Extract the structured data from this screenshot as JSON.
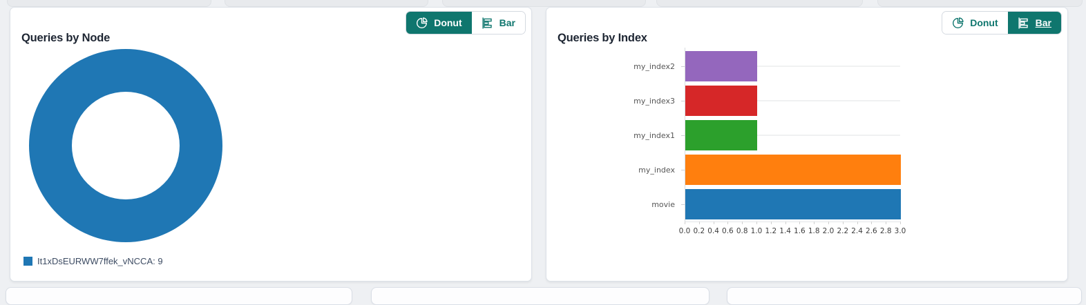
{
  "accent_teal": "#0f766e",
  "panels": {
    "node": {
      "title": "Queries by Node",
      "toggle": {
        "donut_label": "Donut",
        "bar_label": "Bar",
        "active": "Donut"
      },
      "legend": [
        {
          "label": "It1xDsEURWW7ffek_vNCCA: 9",
          "color": "#1f77b4"
        }
      ]
    },
    "index": {
      "title": "Queries by Index",
      "toggle": {
        "donut_label": "Donut",
        "bar_label": "Bar",
        "active": "Bar"
      }
    }
  },
  "chart_data": [
    {
      "type": "pie",
      "title": "Queries by Node",
      "labels": [
        "It1xDsEURWW7ffek_vNCCA"
      ],
      "values": [
        9
      ],
      "colors": [
        "#1f77b4"
      ],
      "donut": true,
      "donut_hole_ratio": 0.55,
      "legend_position": "bottom-left",
      "legend_entries": [
        "It1xDsEURWW7ffek_vNCCA: 9"
      ]
    },
    {
      "type": "bar",
      "orientation": "horizontal",
      "title": "Queries by Index",
      "categories": [
        "my_index2",
        "my_index3",
        "my_index1",
        "my_index",
        "movie"
      ],
      "values": [
        1,
        1,
        1,
        3,
        3
      ],
      "colors": [
        "#9467bd",
        "#d62728",
        "#2ca02c",
        "#ff7f0e",
        "#1f77b4"
      ],
      "xlim": [
        0,
        3
      ],
      "xtick_labels": [
        "0.0",
        "0.2",
        "0.4",
        "0.6",
        "0.8",
        "1.0",
        "1.2",
        "1.4",
        "1.6",
        "1.8",
        "2.0",
        "2.2",
        "2.4",
        "2.6",
        "2.8",
        "3.0"
      ],
      "grid": "horizontal-category-lines",
      "legend": "none"
    }
  ]
}
